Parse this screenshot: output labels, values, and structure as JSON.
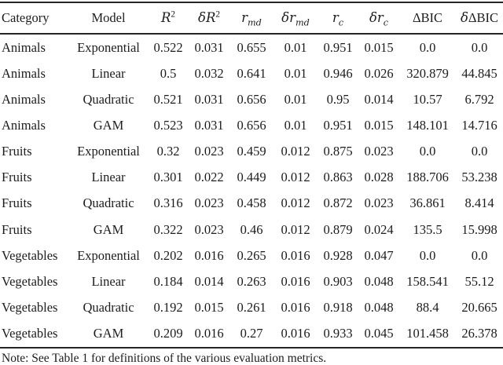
{
  "table": {
    "headers": [
      {
        "text": "Category"
      },
      {
        "text": "Model"
      },
      {
        "base": "R",
        "sup": "2"
      },
      {
        "pre": "δ",
        "base": "R",
        "sup": "2"
      },
      {
        "base": "r",
        "sub": "md"
      },
      {
        "pre": "δ",
        "base": "r",
        "sub": "md"
      },
      {
        "base": "r",
        "sub": "c"
      },
      {
        "pre": "δ",
        "base": "r",
        "sub": "c"
      },
      {
        "text": "ΔBIC"
      },
      {
        "pre": "δ",
        "text": "ΔBIC"
      }
    ],
    "rows": [
      [
        "Animals",
        "Exponential",
        "0.522",
        "0.031",
        "0.655",
        "0.01",
        "0.951",
        "0.015",
        "0.0",
        "0.0"
      ],
      [
        "Animals",
        "Linear",
        "0.5",
        "0.032",
        "0.641",
        "0.01",
        "0.946",
        "0.026",
        "320.879",
        "44.845"
      ],
      [
        "Animals",
        "Quadratic",
        "0.521",
        "0.031",
        "0.656",
        "0.01",
        "0.95",
        "0.014",
        "10.57",
        "6.792"
      ],
      [
        "Animals",
        "GAM",
        "0.523",
        "0.031",
        "0.656",
        "0.01",
        "0.951",
        "0.015",
        "148.101",
        "14.716"
      ],
      [
        "Fruits",
        "Exponential",
        "0.32",
        "0.023",
        "0.459",
        "0.012",
        "0.875",
        "0.023",
        "0.0",
        "0.0"
      ],
      [
        "Fruits",
        "Linear",
        "0.301",
        "0.022",
        "0.449",
        "0.012",
        "0.863",
        "0.028",
        "188.706",
        "53.238"
      ],
      [
        "Fruits",
        "Quadratic",
        "0.316",
        "0.023",
        "0.458",
        "0.012",
        "0.872",
        "0.023",
        "36.861",
        "8.414"
      ],
      [
        "Fruits",
        "GAM",
        "0.322",
        "0.023",
        "0.46",
        "0.012",
        "0.879",
        "0.024",
        "135.5",
        "15.998"
      ],
      [
        "Vegetables",
        "Exponential",
        "0.202",
        "0.016",
        "0.265",
        "0.016",
        "0.928",
        "0.047",
        "0.0",
        "0.0"
      ],
      [
        "Vegetables",
        "Linear",
        "0.184",
        "0.014",
        "0.263",
        "0.016",
        "0.903",
        "0.048",
        "158.541",
        "55.12"
      ],
      [
        "Vegetables",
        "Quadratic",
        "0.192",
        "0.015",
        "0.261",
        "0.016",
        "0.918",
        "0.048",
        "88.4",
        "20.665"
      ],
      [
        "Vegetables",
        "GAM",
        "0.209",
        "0.016",
        "0.27",
        "0.016",
        "0.933",
        "0.045",
        "101.458",
        "26.378"
      ]
    ],
    "note": "Note: See Table 1 for definitions of the various evaluation metrics."
  }
}
